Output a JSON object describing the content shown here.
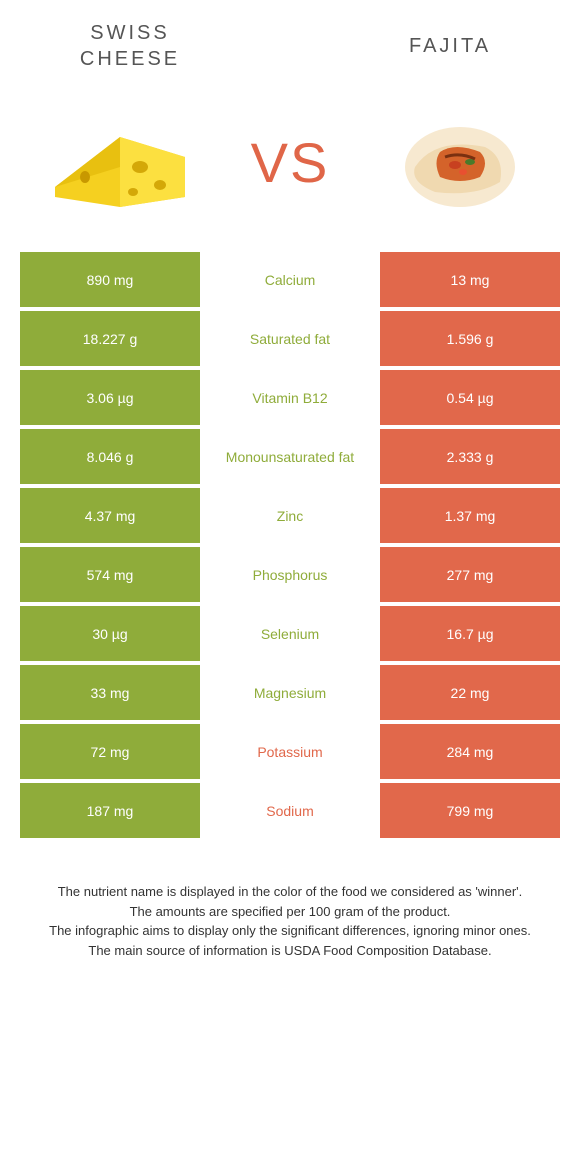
{
  "header": {
    "left_title": "Swiss\nCheese",
    "right_title": "Fajita",
    "vs": "VS"
  },
  "colors": {
    "left_bg": "#8fac3a",
    "right_bg": "#e1684b",
    "left_text": "#8fac3a",
    "right_text": "#e1684b"
  },
  "rows": [
    {
      "left": "890 mg",
      "mid": "Calcium",
      "right": "13 mg",
      "winner": "left"
    },
    {
      "left": "18.227 g",
      "mid": "Saturated fat",
      "right": "1.596 g",
      "winner": "left"
    },
    {
      "left": "3.06 µg",
      "mid": "Vitamin B12",
      "right": "0.54 µg",
      "winner": "left"
    },
    {
      "left": "8.046 g",
      "mid": "Monounsaturated fat",
      "right": "2.333 g",
      "winner": "left"
    },
    {
      "left": "4.37 mg",
      "mid": "Zinc",
      "right": "1.37 mg",
      "winner": "left"
    },
    {
      "left": "574 mg",
      "mid": "Phosphorus",
      "right": "277 mg",
      "winner": "left"
    },
    {
      "left": "30 µg",
      "mid": "Selenium",
      "right": "16.7 µg",
      "winner": "left"
    },
    {
      "left": "33 mg",
      "mid": "Magnesium",
      "right": "22 mg",
      "winner": "left"
    },
    {
      "left": "72 mg",
      "mid": "Potassium",
      "right": "284 mg",
      "winner": "right"
    },
    {
      "left": "187 mg",
      "mid": "Sodium",
      "right": "799 mg",
      "winner": "right"
    }
  ],
  "footer": {
    "l1": "The nutrient name is displayed in the color of the food we considered as 'winner'.",
    "l2": "The amounts are specified per 100 gram of the product.",
    "l3": "The infographic aims to display only the significant differences, ignoring minor ones.",
    "l4": "The main source of information is USDA Food Composition Database."
  }
}
